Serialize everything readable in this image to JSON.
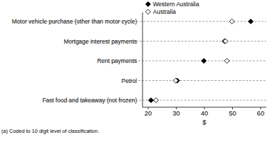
{
  "chart_data": {
    "type": "dot",
    "orientation": "horizontal",
    "categories": [
      "Motor vehicle purchase (other than motor cycle)",
      "Mortgage interest payments",
      "Rent payments",
      "Petrol",
      "Fast food and takeaway (not frozen)"
    ],
    "series": [
      {
        "name": "Western Australia",
        "color": "#000000",
        "marker": "diamond",
        "values": [
          56.5,
          47.2,
          39.8,
          30.3,
          21.0
        ]
      },
      {
        "name": "Australia",
        "color": "#000000",
        "marker": "diamond-open",
        "values": [
          49.8,
          47.5,
          48.0,
          29.8,
          22.8
        ]
      }
    ],
    "x_label": "$",
    "xlim": [
      18,
      62
    ],
    "xticks": [
      20,
      30,
      40,
      50,
      60
    ],
    "grid": true,
    "legend": "upper left",
    "annotations": [
      "(a) Coded to 10 digit level of classification."
    ]
  }
}
